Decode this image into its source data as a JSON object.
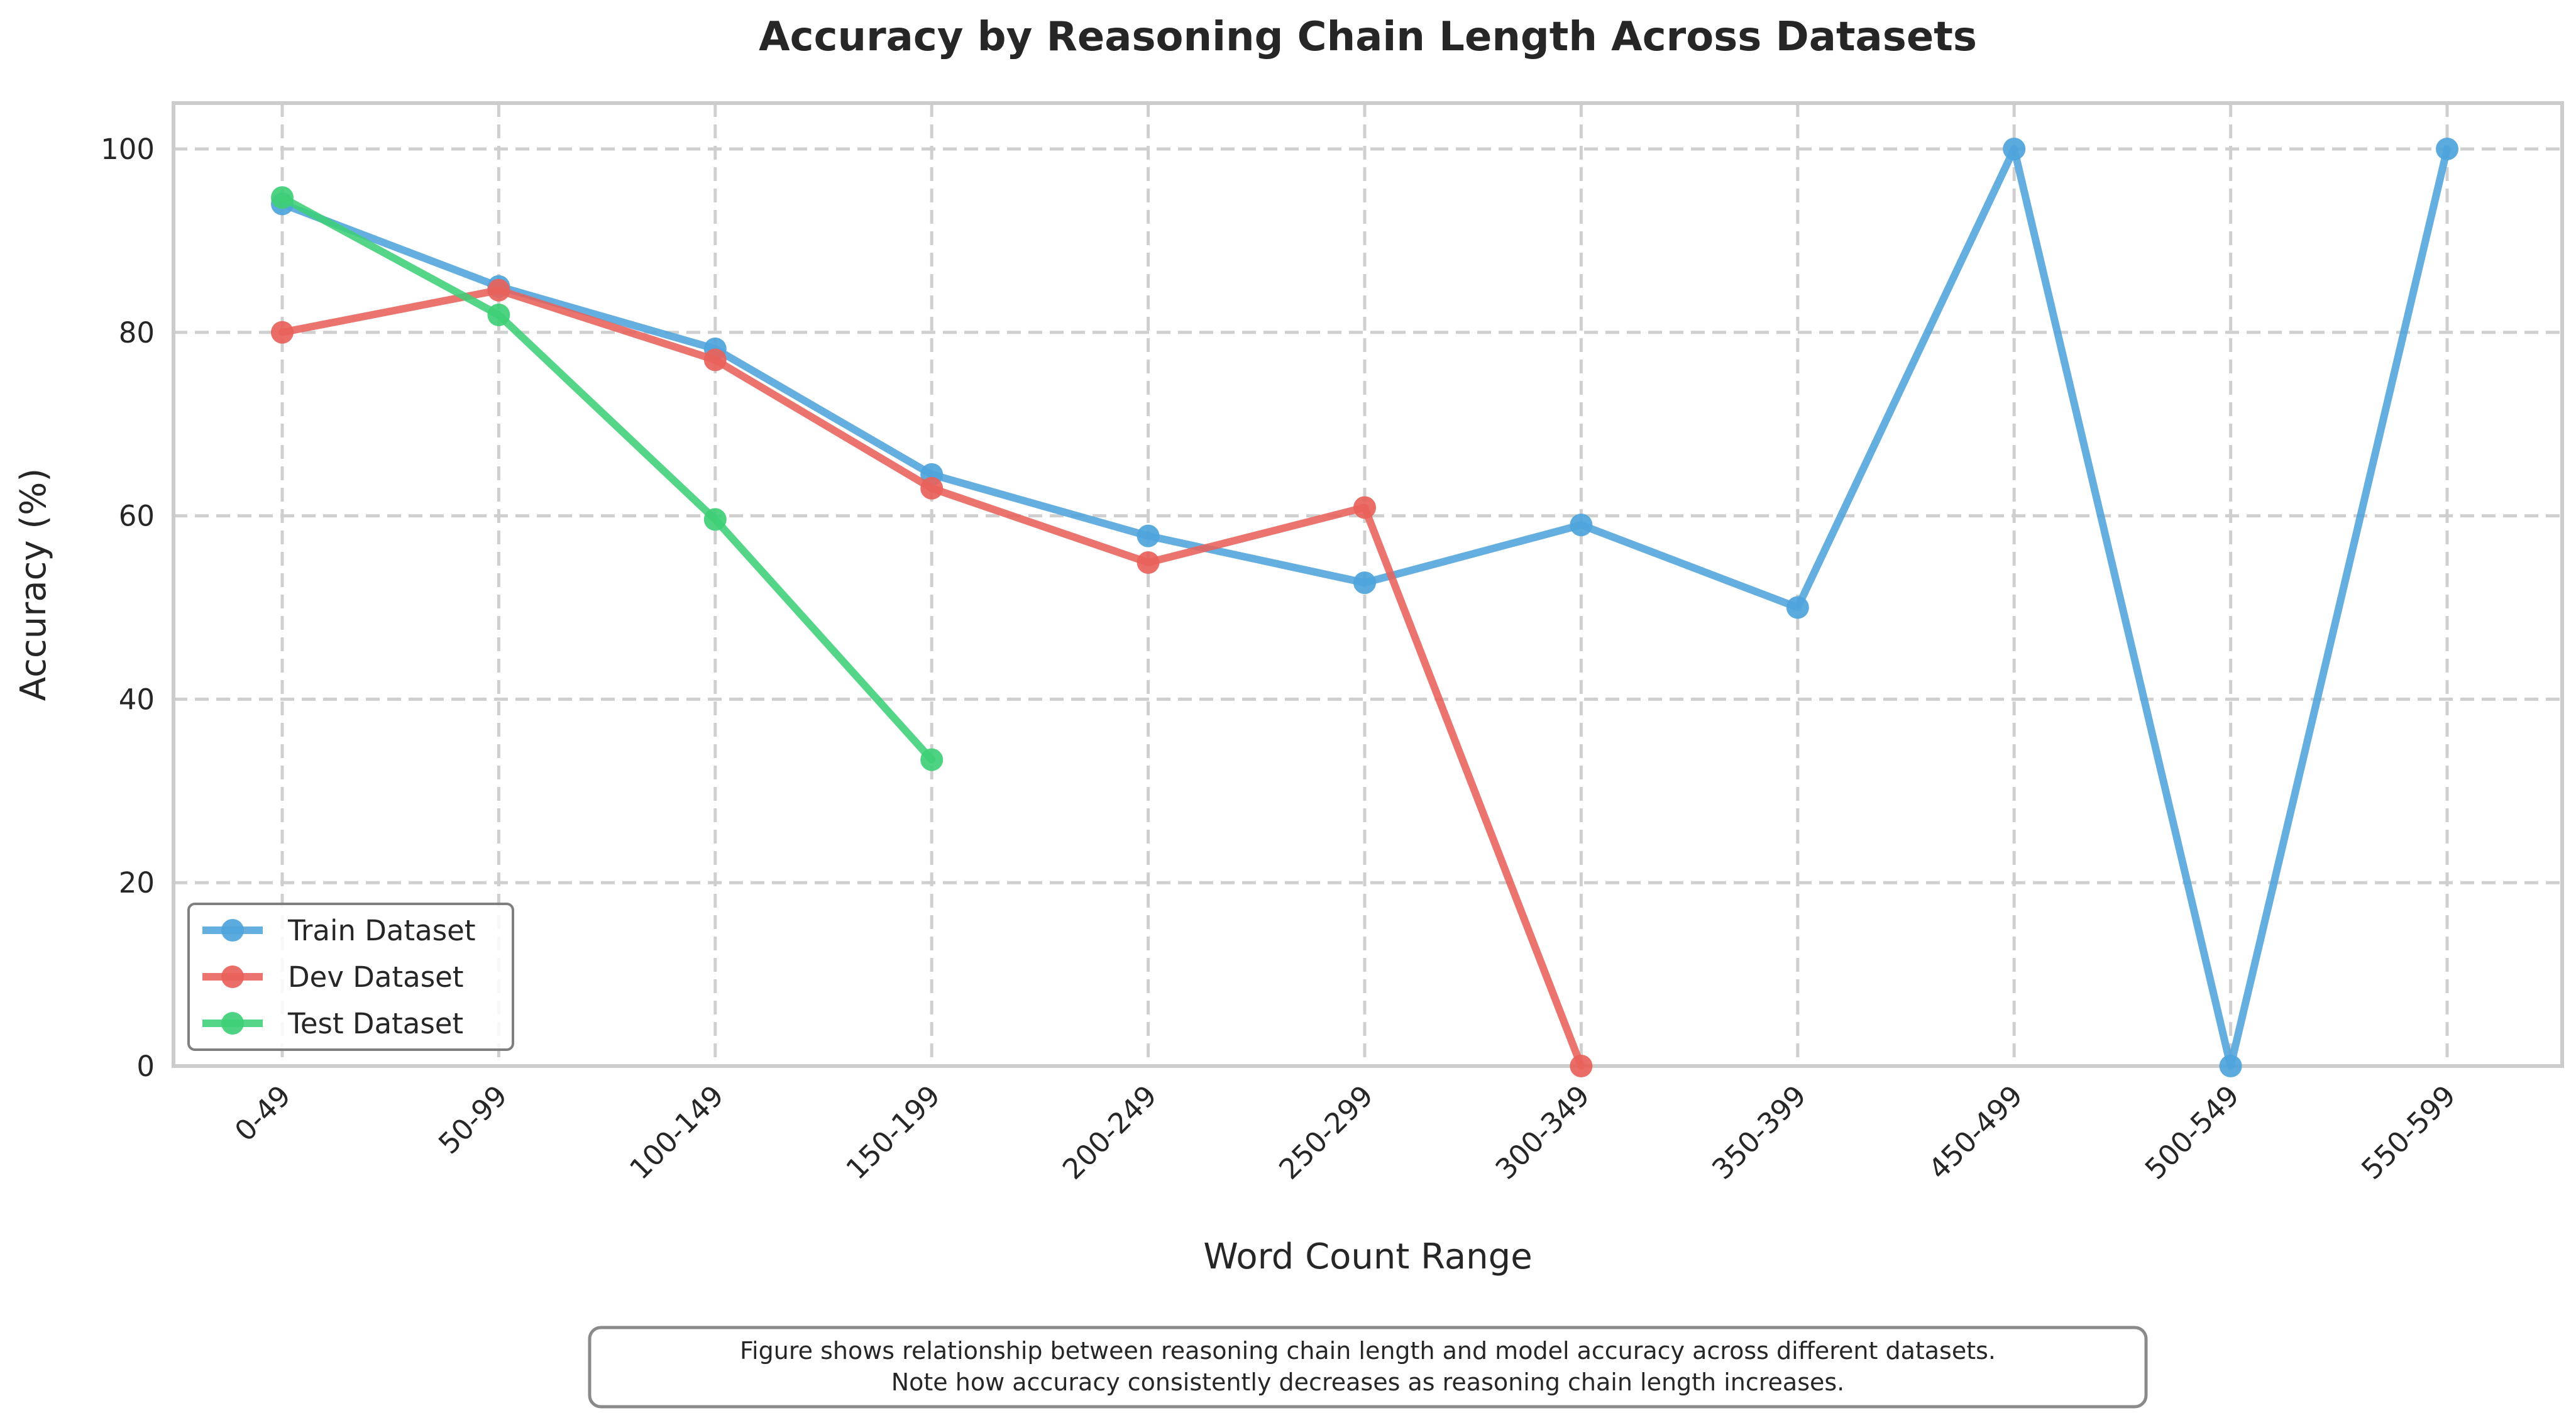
{
  "chart_data": {
    "type": "line",
    "title": "Accuracy by Reasoning Chain Length Across Datasets",
    "xlabel": "Word Count Range",
    "ylabel": "Accuracy (%)",
    "categories": [
      "0-49",
      "50-99",
      "100-149",
      "150-199",
      "200-249",
      "250-299",
      "300-349",
      "350-399",
      "450-499",
      "500-549",
      "550-599"
    ],
    "ylim": [
      0,
      105
    ],
    "yticks": [
      0,
      20,
      40,
      60,
      80,
      100
    ],
    "grid": true,
    "legend_position": "lower-left",
    "series": [
      {
        "name": "Train Dataset",
        "color": "#4ea4dc",
        "values": [
          94.0,
          85.0,
          78.2,
          64.5,
          57.8,
          52.7,
          59.0,
          50.0,
          100.0,
          0.0,
          100.0
        ]
      },
      {
        "name": "Dev Dataset",
        "color": "#e8625a",
        "values": [
          80.0,
          84.6,
          77.0,
          63.0,
          54.9,
          60.9,
          0.0,
          null,
          null,
          null,
          null
        ]
      },
      {
        "name": "Test Dataset",
        "color": "#3ecf76",
        "values": [
          94.7,
          81.9,
          59.6,
          33.4,
          null,
          null,
          null,
          null,
          null,
          null,
          null
        ]
      }
    ],
    "caption_lines": [
      "Figure shows relationship between reasoning chain length and model accuracy across different datasets.",
      "Note how accuracy consistently decreases as reasoning chain length increases."
    ]
  }
}
